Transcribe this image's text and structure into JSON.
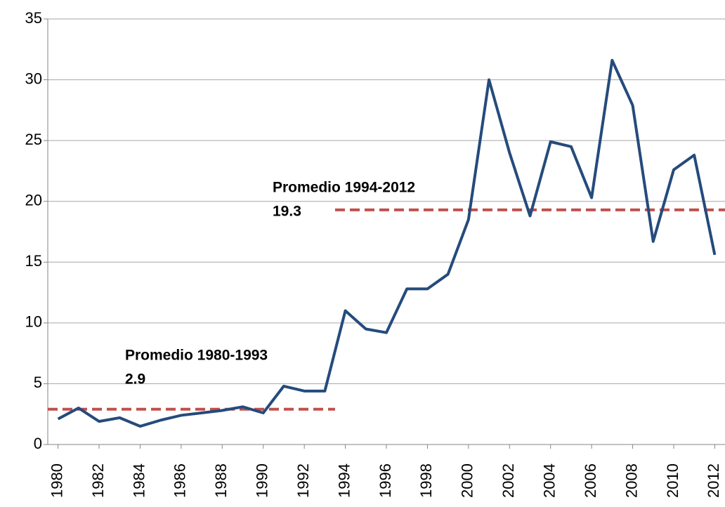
{
  "chart_data": {
    "type": "line",
    "x": [
      1980,
      1981,
      1982,
      1983,
      1984,
      1985,
      1986,
      1987,
      1988,
      1989,
      1990,
      1991,
      1992,
      1993,
      1994,
      1995,
      1996,
      1997,
      1998,
      1999,
      2000,
      2001,
      2002,
      2003,
      2004,
      2005,
      2006,
      2007,
      2008,
      2009,
      2010,
      2011,
      2012
    ],
    "series": [
      {
        "color": "#254b7c",
        "values": [
          2.1,
          3.0,
          1.9,
          2.2,
          1.5,
          2.0,
          2.4,
          2.6,
          2.8,
          3.1,
          2.6,
          4.8,
          4.4,
          4.4,
          11.0,
          9.5,
          9.2,
          12.8,
          12.8,
          14.0,
          18.5,
          30.0,
          24.0,
          18.8,
          24.9,
          24.5,
          20.3,
          31.6,
          27.9,
          16.7,
          22.6,
          23.8,
          15.6
        ]
      }
    ],
    "xlim": [
      1979.5,
      2012.5
    ],
    "xticks": [
      1980,
      1982,
      1984,
      1986,
      1988,
      1990,
      1992,
      1994,
      1996,
      1998,
      2000,
      2002,
      2004,
      2006,
      2008,
      2010,
      2012
    ],
    "ylim": [
      0,
      35
    ],
    "yticks": [
      0,
      5,
      10,
      15,
      20,
      25,
      30,
      35
    ],
    "grid": true,
    "annotations": [
      {
        "text": "Promedio 1980-1993",
        "value_label": "2.9",
        "value": 2.9,
        "x_range": [
          1980,
          1993
        ],
        "color": "#c0504d"
      },
      {
        "text": "Promedio 1994-2012",
        "value_label": "19.3",
        "value": 19.3,
        "x_range": [
          1994,
          2012
        ],
        "color": "#c0504d"
      }
    ]
  }
}
